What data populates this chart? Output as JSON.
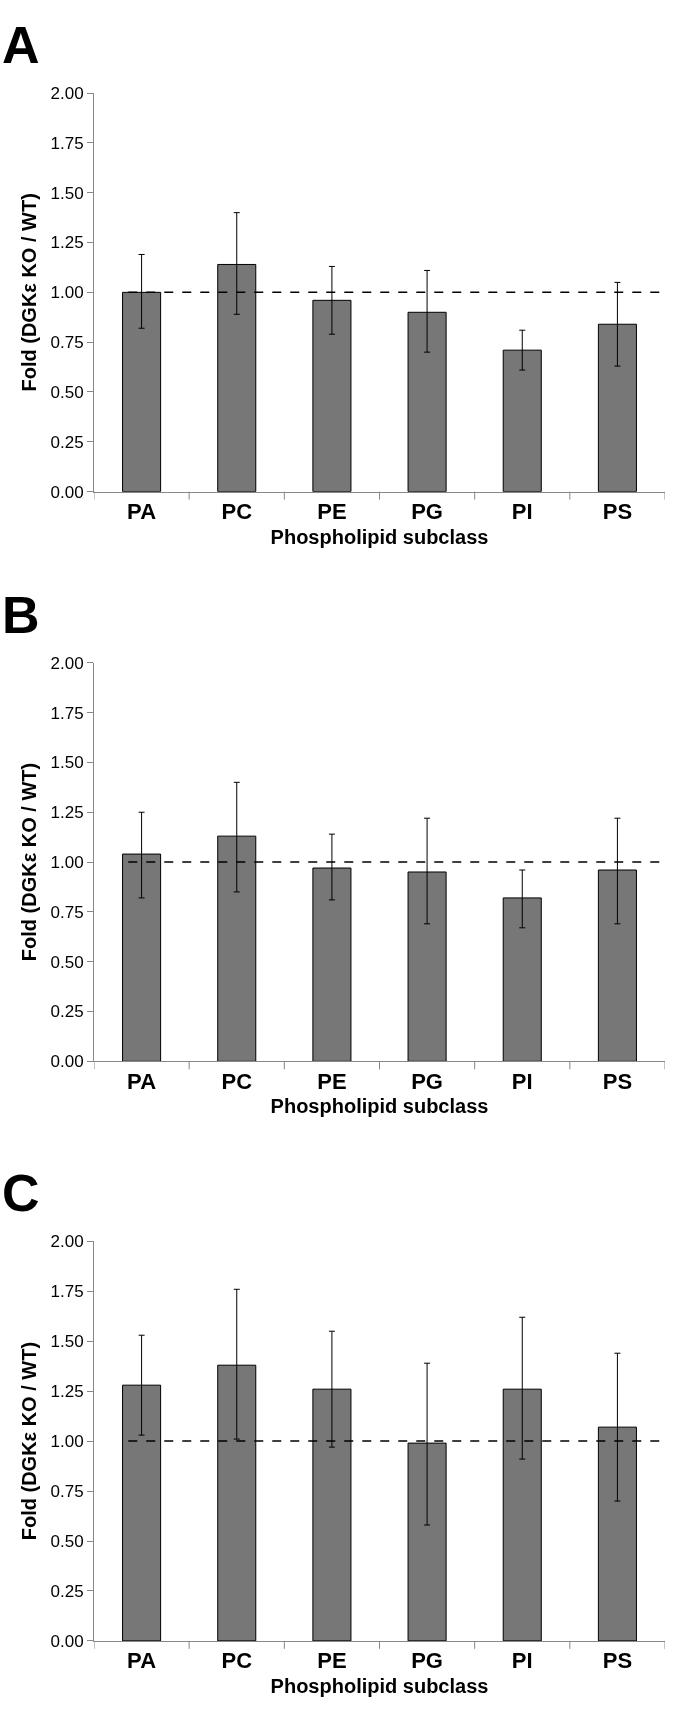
{
  "chart_data": [
    {
      "type": "bar",
      "title": "A",
      "xlabel": "Phospholipid subclass",
      "ylabel": "Fold (DGKε KO / WT)",
      "categories": [
        "PA",
        "PC",
        "PE",
        "PG",
        "PI",
        "PS"
      ],
      "color": "#777777",
      "values": [
        1.0,
        1.14,
        0.96,
        0.9,
        0.71,
        0.84
      ],
      "errors": [
        [
          0.82,
          1.19
        ],
        [
          0.89,
          1.4
        ],
        [
          0.79,
          1.13
        ],
        [
          0.7,
          1.11
        ],
        [
          0.61,
          0.81
        ],
        [
          0.63,
          1.05
        ]
      ],
      "ylim": [
        0,
        2
      ],
      "yticks": [
        {
          "value": 0,
          "label": "0.00"
        },
        {
          "value": 0.25,
          "label": "0.25"
        },
        {
          "value": 0.5,
          "label": "0.50"
        },
        {
          "value": 0.75,
          "label": "0.75"
        },
        {
          "value": 1,
          "label": "1.00"
        },
        {
          "value": 1.25,
          "label": "1.25"
        },
        {
          "value": 1.5,
          "label": "1.50"
        },
        {
          "value": 1.75,
          "label": "1.75"
        },
        {
          "value": 2,
          "label": "2.00"
        }
      ],
      "ref_lines": [
        {
          "axis": "y",
          "value": 1,
          "color": "#000000",
          "line_style": "dashed"
        }
      ]
    },
    {
      "type": "bar",
      "title": "B",
      "xlabel": "Phospholipid subclass",
      "ylabel": "Fold (DGKε KO / WT)",
      "categories": [
        "PA",
        "PC",
        "PE",
        "PG",
        "PI",
        "PS"
      ],
      "color": "#777777",
      "values": [
        1.04,
        1.13,
        0.97,
        0.95,
        0.82,
        0.96
      ],
      "errors": [
        [
          0.82,
          1.25
        ],
        [
          0.85,
          1.4
        ],
        [
          0.81,
          1.14
        ],
        [
          0.69,
          1.22
        ],
        [
          0.67,
          0.96
        ],
        [
          0.69,
          1.22
        ]
      ],
      "ylim": [
        0,
        2
      ],
      "yticks": [
        {
          "value": 0,
          "label": "0.00"
        },
        {
          "value": 0.25,
          "label": "0.25"
        },
        {
          "value": 0.5,
          "label": "0.50"
        },
        {
          "value": 0.75,
          "label": "0.75"
        },
        {
          "value": 1,
          "label": "1.00"
        },
        {
          "value": 1.25,
          "label": "1.25"
        },
        {
          "value": 1.5,
          "label": "1.50"
        },
        {
          "value": 1.75,
          "label": "1.75"
        },
        {
          "value": 2,
          "label": "2.00"
        }
      ],
      "ref_lines": [
        {
          "axis": "y",
          "value": 1,
          "color": "#000000",
          "line_style": "dashed"
        }
      ]
    },
    {
      "type": "bar",
      "title": "C",
      "xlabel": "Phospholipid subclass",
      "ylabel": "Fold (DGKε KO / WT)",
      "categories": [
        "PA",
        "PC",
        "PE",
        "PG",
        "PI",
        "PS"
      ],
      "color": "#777777",
      "values": [
        1.28,
        1.38,
        1.26,
        0.99,
        1.26,
        1.07
      ],
      "errors": [
        [
          1.03,
          1.53
        ],
        [
          1.01,
          1.76
        ],
        [
          0.97,
          1.55
        ],
        [
          0.58,
          1.39
        ],
        [
          0.91,
          1.62
        ],
        [
          0.7,
          1.44
        ]
      ],
      "ylim": [
        0,
        2
      ],
      "yticks": [
        {
          "value": 0,
          "label": "0.00"
        },
        {
          "value": 0.25,
          "label": "0.25"
        },
        {
          "value": 0.5,
          "label": "0.50"
        },
        {
          "value": 0.75,
          "label": "0.75"
        },
        {
          "value": 1,
          "label": "1.00"
        },
        {
          "value": 1.25,
          "label": "1.25"
        },
        {
          "value": 1.5,
          "label": "1.50"
        },
        {
          "value": 1.75,
          "label": "1.75"
        },
        {
          "value": 2,
          "label": "2.00"
        }
      ],
      "ref_lines": [
        {
          "axis": "y",
          "value": 1,
          "color": "#000000",
          "line_style": "dashed"
        }
      ]
    }
  ]
}
